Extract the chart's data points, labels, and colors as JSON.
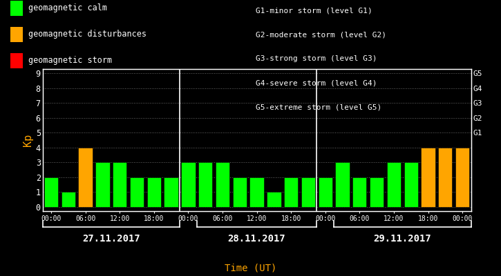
{
  "background_color": "#000000",
  "bar_values": [
    2,
    1,
    4,
    3,
    3,
    2,
    2,
    2,
    3,
    3,
    3,
    2,
    2,
    1,
    2,
    2,
    2,
    3,
    2,
    2,
    3,
    3,
    4,
    4,
    4
  ],
  "bar_colors": [
    "#00ff00",
    "#00ff00",
    "#ffa500",
    "#00ff00",
    "#00ff00",
    "#00ff00",
    "#00ff00",
    "#00ff00",
    "#00ff00",
    "#00ff00",
    "#00ff00",
    "#00ff00",
    "#00ff00",
    "#00ff00",
    "#00ff00",
    "#00ff00",
    "#00ff00",
    "#00ff00",
    "#00ff00",
    "#00ff00",
    "#00ff00",
    "#00ff00",
    "#ffa500",
    "#ffa500",
    "#ffa500"
  ],
  "ylim_min": -0.3,
  "ylim_max": 9.3,
  "yticks": [
    0,
    1,
    2,
    3,
    4,
    5,
    6,
    7,
    8,
    9
  ],
  "ylabel": "Kp",
  "xlabel": "Time (UT)",
  "day_labels": [
    "27.11.2017",
    "28.11.2017",
    "29.11.2017"
  ],
  "right_ytick_labels": [
    "G1",
    "G2",
    "G3",
    "G4",
    "G5"
  ],
  "right_ytick_positions": [
    5,
    6,
    7,
    8,
    9
  ],
  "text_color": "#ffffff",
  "orange_color": "#ffa500",
  "legend_items": [
    {
      "label": "geomagnetic calm",
      "color": "#00ff00"
    },
    {
      "label": "geomagnetic disturbances",
      "color": "#ffa500"
    },
    {
      "label": "geomagnetic storm",
      "color": "#ff0000"
    }
  ],
  "storm_text": [
    "G1-minor storm (level G1)",
    "G2-moderate storm (level G2)",
    "G3-strong storm (level G3)",
    "G4-severe storm (level G4)",
    "G5-extreme storm (level G5)"
  ],
  "day_divider_indices": [
    7,
    15
  ],
  "num_bars": 25,
  "xtick_labels": [
    "00:00",
    "06:00",
    "12:00",
    "18:00",
    "00:00",
    "06:00",
    "12:00",
    "18:00",
    "00:00",
    "06:00",
    "12:00",
    "18:00",
    "00:00"
  ],
  "xtick_bar_indices": [
    0,
    2,
    4,
    6,
    8,
    10,
    12,
    14,
    16,
    18,
    20,
    22,
    24
  ]
}
